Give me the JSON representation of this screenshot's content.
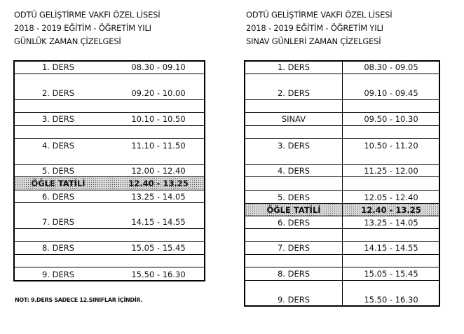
{
  "left": {
    "header": [
      "ODTÜ GELİŞTİRME VAKFI ÖZEL LİSESİ",
      "2018 - 2019  EĞİTİM - ÖĞRETİM YILI",
      "GÜNLÜK ZAMAN ÇİZELGESİ"
    ],
    "rows": [
      {
        "label": "1. DERS",
        "time": "08.30 - 09.10"
      },
      {
        "label": "2. DERS",
        "time": "09.20 - 10.00"
      },
      {
        "label": "3. DERS",
        "time": "10.10 - 10.50"
      },
      {
        "label": "4. DERS",
        "time": "11.10 - 11.50"
      },
      {
        "label": "5. DERS",
        "time": "12.00 - 12.40"
      },
      {
        "label": "ÖĞLE TATİLİ",
        "time": "12.40 - 13.25",
        "highlight": true
      },
      {
        "label": "6. DERS",
        "time": "13.25 - 14.05"
      },
      {
        "label": "7. DERS",
        "time": "14.15 - 14.55"
      },
      {
        "label": "8. DERS",
        "time": "15.05 - 15.45"
      },
      {
        "label": "9. DERS",
        "time": "15.50 - 16.30"
      }
    ],
    "note": "NOT: 9.DERS SADECE 12.SINIFLAR İÇİNDİR."
  },
  "right": {
    "header": [
      "ODTÜ GELİŞTİRME VAKFI ÖZEL LİSESİ",
      "2018 - 2019  EĞİTİM - ÖĞRETİM YILI",
      "SINAV GÜNLERİ ZAMAN ÇİZELGESİ"
    ],
    "rows": [
      {
        "label": "1. DERS",
        "time": "08.30 - 09.05"
      },
      {
        "label": "2. DERS",
        "time": "09.10 - 09.45"
      },
      {
        "label": "SINAV",
        "time": "09.50 - 10.30"
      },
      {
        "label": "3. DERS",
        "time": "10.50 - 11.20"
      },
      {
        "label": "4. DERS",
        "time": "11.25 - 12.00"
      },
      {
        "label": "5. DERS",
        "time": "12.05 - 12.40"
      },
      {
        "label": "ÖĞLE TATİLİ",
        "time": "12.40 - 13.25",
        "highlight": true
      },
      {
        "label": "6. DERS",
        "time": "13.25 - 14.05"
      },
      {
        "label": "7. DERS",
        "time": "14.15 - 14.55"
      },
      {
        "label": "8. DERS",
        "time": "15.05 - 15.45"
      },
      {
        "label": "9. DERS",
        "time": "15.50 - 16.30"
      }
    ]
  }
}
